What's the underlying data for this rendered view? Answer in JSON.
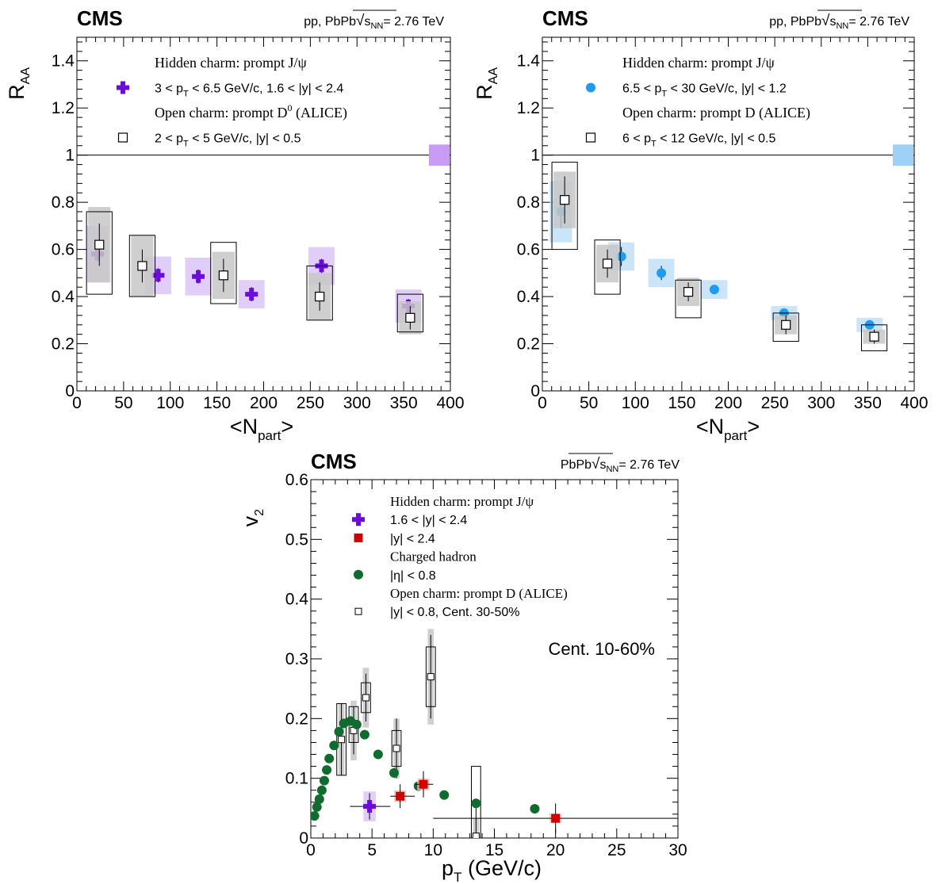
{
  "colors": {
    "jpsi": "#6a0dd9",
    "jpsi_band": "#dcc6f7",
    "jpsi_norm": "#c89cf5",
    "jpsi_high": "#1f9bef",
    "jpsi_high_band": "#c2e0f7",
    "jpsi_high_norm": "#9fd0f5",
    "red": "#d40000",
    "red_band": "#f5c2c2",
    "green": "#0f6b2e",
    "d_sys": "#c7c7c7"
  },
  "chart_data": [
    {
      "type": "scatter",
      "id": "raa_left",
      "brand": "CMS",
      "energy_prefix": "pp, PbPb",
      "energy_value": "= 2.76 TeV",
      "sqrt_text": "s",
      "sqrt_sub": "NN",
      "ylabel": "R",
      "ylabel_sub": "AA",
      "xlabel": "<N",
      "xlabel_sub": "part",
      "xlabel_end": ">",
      "xlim": [
        0,
        400
      ],
      "ylim": [
        0,
        1.5
      ],
      "xticks": [
        "0",
        "50",
        "100",
        "150",
        "200",
        "250",
        "300",
        "350",
        "400"
      ],
      "yticks": [
        "0",
        "0.2",
        "0.4",
        "0.6",
        "0.8",
        "1",
        "1.2",
        "1.4"
      ],
      "reference_line": 1,
      "norm_box": {
        "x": [
          377,
          400
        ],
        "y": [
          0.955,
          1.045
        ],
        "color_key": "jpsi_norm"
      },
      "legend": [
        {
          "kind": "header",
          "text": "Hidden charm: prompt J/ψ"
        },
        {
          "kind": "entry",
          "marker": "cross",
          "color_key": "jpsi",
          "parts": [
            "3 < p",
            "T",
            " < 6.5 GeV/c, 1.6 < |y| < 2.4"
          ]
        },
        {
          "kind": "header",
          "text": "Open charm: prompt D",
          "sup": "0",
          "tail": " (ALICE)"
        },
        {
          "kind": "entry",
          "marker": "open_square",
          "color_key": "black",
          "parts": [
            "2 < p",
            "T",
            " < 5 GeV/c, |y| < 0.5"
          ]
        }
      ],
      "series": [
        {
          "marker": "cross",
          "color_key": "jpsi",
          "band_key": "jpsi_band",
          "points": [
            {
              "x": 22,
              "y": 0.58,
              "err": 0.03,
              "sys": 0.12,
              "bw": 12
            },
            {
              "x": 87,
              "y": 0.49,
              "err": 0.03,
              "sys": 0.08,
              "bw": 14
            },
            {
              "x": 130,
              "y": 0.485,
              "err": 0.03,
              "sys": 0.08,
              "bw": 14
            },
            {
              "x": 187,
              "y": 0.41,
              "err": 0.03,
              "sys": 0.06,
              "bw": 14
            },
            {
              "x": 262,
              "y": 0.53,
              "err": 0.03,
              "sys": 0.08,
              "bw": 14
            },
            {
              "x": 355,
              "y": 0.36,
              "err": 0.03,
              "sys": 0.07,
              "bw": 14
            }
          ]
        },
        {
          "marker": "open_square",
          "color_key": "black",
          "band_key": "d_sys",
          "points": [
            {
              "x": 24,
              "y": 0.62,
              "err": 0.09,
              "sys": 0.16,
              "bw": 12,
              "outer": [
                0.41,
                0.76
              ]
            },
            {
              "x": 70,
              "y": 0.53,
              "err": 0.07,
              "sys": 0.13,
              "bw": 12,
              "outer": [
                0.4,
                0.66
              ]
            },
            {
              "x": 157,
              "y": 0.49,
              "err": 0.07,
              "sys": 0.1,
              "bw": 12,
              "outer": [
                0.37,
                0.63
              ]
            },
            {
              "x": 260,
              "y": 0.4,
              "err": 0.06,
              "sys": 0.1,
              "bw": 12,
              "outer": [
                0.3,
                0.53
              ]
            },
            {
              "x": 357,
              "y": 0.31,
              "err": 0.05,
              "sys": 0.07,
              "bw": 12,
              "outer": [
                0.25,
                0.41
              ]
            }
          ]
        }
      ]
    },
    {
      "type": "scatter",
      "id": "raa_right",
      "brand": "CMS",
      "energy_prefix": "pp, PbPb",
      "energy_value": "= 2.76 TeV",
      "sqrt_text": "s",
      "sqrt_sub": "NN",
      "ylabel": "R",
      "ylabel_sub": "AA",
      "xlabel": "<N",
      "xlabel_sub": "part",
      "xlabel_end": ">",
      "xlim": [
        0,
        400
      ],
      "ylim": [
        0,
        1.5
      ],
      "xticks": [
        "0",
        "50",
        "100",
        "150",
        "200",
        "250",
        "300",
        "350",
        "400"
      ],
      "yticks": [
        "0",
        "0.2",
        "0.4",
        "0.6",
        "0.8",
        "1",
        "1.2",
        "1.4"
      ],
      "reference_line": 1,
      "norm_box": {
        "x": [
          377,
          400
        ],
        "y": [
          0.955,
          1.045
        ],
        "color_key": "jpsi_high_norm"
      },
      "legend": [
        {
          "kind": "header",
          "text": "Hidden charm: prompt J/ψ"
        },
        {
          "kind": "entry",
          "marker": "circle",
          "color_key": "jpsi_high",
          "parts": [
            "6.5 < p",
            "T",
            " < 30 GeV/c, |y| < 1.2"
          ]
        },
        {
          "kind": "header",
          "text": "Open charm: prompt D (ALICE)"
        },
        {
          "kind": "entry",
          "marker": "open_square",
          "color_key": "black",
          "parts": [
            "6 < p",
            "T",
            " < 12 GeV/c, |y| < 0.5"
          ]
        }
      ],
      "series": [
        {
          "marker": "circle",
          "color_key": "jpsi_high",
          "band_key": "jpsi_high_band",
          "points": [
            {
              "x": 20,
              "y": 0.76,
              "err": 0.07,
              "sys": 0.13,
              "bw": 12
            },
            {
              "x": 85,
              "y": 0.57,
              "err": 0.04,
              "sys": 0.06,
              "bw": 14
            },
            {
              "x": 128,
              "y": 0.5,
              "err": 0.03,
              "sys": 0.06,
              "bw": 14
            },
            {
              "x": 185,
              "y": 0.43,
              "err": 0.02,
              "sys": 0.04,
              "bw": 14
            },
            {
              "x": 260,
              "y": 0.33,
              "err": 0.02,
              "sys": 0.03,
              "bw": 14
            },
            {
              "x": 352,
              "y": 0.28,
              "err": 0.02,
              "sys": 0.03,
              "bw": 14
            }
          ]
        },
        {
          "marker": "open_square",
          "color_key": "black",
          "band_key": "d_sys",
          "points": [
            {
              "x": 24,
              "y": 0.81,
              "err": 0.1,
              "sys": 0.12,
              "bw": 12,
              "outer": [
                0.6,
                0.97
              ]
            },
            {
              "x": 70,
              "y": 0.54,
              "err": 0.06,
              "sys": 0.08,
              "bw": 12,
              "outer": [
                0.41,
                0.64
              ]
            },
            {
              "x": 157,
              "y": 0.42,
              "err": 0.04,
              "sys": 0.06,
              "bw": 12,
              "outer": [
                0.31,
                0.47
              ]
            },
            {
              "x": 262,
              "y": 0.28,
              "err": 0.04,
              "sys": 0.04,
              "bw": 12,
              "outer": [
                0.21,
                0.33
              ]
            },
            {
              "x": 357,
              "y": 0.23,
              "err": 0.03,
              "sys": 0.03,
              "bw": 12,
              "outer": [
                0.17,
                0.28
              ]
            }
          ]
        }
      ]
    },
    {
      "type": "scatter",
      "id": "v2",
      "brand": "CMS",
      "energy_prefix": "PbPb",
      "energy_value": "= 2.76 TeV",
      "sqrt_text": "s",
      "sqrt_sub": "NN",
      "ylabel": "v",
      "ylabel_sub": "2",
      "xlabel": "p",
      "xlabel_sub": "T",
      "xlabel_end": " (GeV/c)",
      "xlim": [
        0,
        30
      ],
      "ylim": [
        0,
        0.6
      ],
      "xticks": [
        "0",
        "5",
        "10",
        "15",
        "20",
        "25",
        "30"
      ],
      "yticks": [
        "0",
        "0.1",
        "0.2",
        "0.3",
        "0.4",
        "0.5",
        "0.6"
      ],
      "annotation": "Cent. 10-60%",
      "legend": [
        {
          "kind": "header",
          "text": "Hidden charm: prompt J/ψ"
        },
        {
          "kind": "entry",
          "marker": "cross",
          "color_key": "jpsi",
          "parts": [
            "1.6 < |y| < 2.4"
          ]
        },
        {
          "kind": "entry",
          "marker": "square",
          "color_key": "red",
          "parts": [
            "|y| < 2.4"
          ]
        },
        {
          "kind": "header",
          "text": "Charged hadron"
        },
        {
          "kind": "entry",
          "marker": "circle",
          "color_key": "green",
          "parts": [
            "|η| < 0.8"
          ]
        },
        {
          "kind": "header",
          "text": "Open charm: prompt D (ALICE)"
        },
        {
          "kind": "entry",
          "marker": "open_square_small",
          "color_key": "black",
          "parts": [
            "|y| < 0.8, Cent. 30-50%"
          ]
        }
      ],
      "series": [
        {
          "marker": "open_square_small",
          "color_key": "black",
          "band_key": "d_sys",
          "points": [
            {
              "x": 2.5,
              "y": 0.165,
              "err": 0.06,
              "sys": 0.06,
              "bw": 0.25,
              "outer": [
                0.105,
                0.225
              ]
            },
            {
              "x": 3.5,
              "y": 0.18,
              "err": 0.04,
              "sys": 0.05,
              "bw": 0.25,
              "outer": [
                0.16,
                0.22
              ]
            },
            {
              "x": 4.5,
              "y": 0.235,
              "err": 0.04,
              "sys": 0.05,
              "bw": 0.25,
              "outer": [
                0.21,
                0.26
              ]
            },
            {
              "x": 7.0,
              "y": 0.15,
              "err": 0.05,
              "sys": 0.05,
              "bw": 0.25,
              "outer": [
                0.12,
                0.18
              ]
            },
            {
              "x": 9.8,
              "y": 0.27,
              "err": 0.07,
              "sys": 0.08,
              "bw": 0.25,
              "outer": [
                0.22,
                0.32
              ]
            },
            {
              "x": 13.5,
              "y": 0.003,
              "err": 0.06,
              "sys": 0.03,
              "bw": 0.25,
              "outer": [
                -0.03,
                0.12
              ]
            }
          ]
        },
        {
          "marker": "circle",
          "color_key": "green",
          "points": [
            {
              "x": 0.3,
              "y": 0.037
            },
            {
              "x": 0.5,
              "y": 0.052
            },
            {
              "x": 0.7,
              "y": 0.065
            },
            {
              "x": 0.9,
              "y": 0.08
            },
            {
              "x": 1.1,
              "y": 0.096
            },
            {
              "x": 1.3,
              "y": 0.114
            },
            {
              "x": 1.5,
              "y": 0.133
            },
            {
              "x": 1.9,
              "y": 0.155
            },
            {
              "x": 2.3,
              "y": 0.178
            },
            {
              "x": 2.7,
              "y": 0.192
            },
            {
              "x": 3.25,
              "y": 0.196
            },
            {
              "x": 3.75,
              "y": 0.19
            },
            {
              "x": 4.4,
              "y": 0.173
            },
            {
              "x": 5.5,
              "y": 0.14
            },
            {
              "x": 6.8,
              "y": 0.109
            },
            {
              "x": 8.8,
              "y": 0.087
            },
            {
              "x": 10.9,
              "y": 0.072
            },
            {
              "x": 13.5,
              "y": 0.058
            },
            {
              "x": 18.3,
              "y": 0.049
            }
          ]
        },
        {
          "marker": "cross",
          "color_key": "jpsi",
          "band_key": "jpsi_band",
          "points": [
            {
              "x": 4.8,
              "y": 0.053,
              "err": 0.022,
              "sys": 0.025,
              "bw": 0.5,
              "xerr": [
                3.2,
                6.5
              ]
            }
          ]
        },
        {
          "marker": "square",
          "color_key": "red",
          "band_key": "red_band",
          "points": [
            {
              "x": 7.3,
              "y": 0.07,
              "err": 0.02,
              "sys": 0.01,
              "bw": 0.5,
              "xerr": [
                6.5,
                8.5
              ]
            },
            {
              "x": 9.2,
              "y": 0.09,
              "err": 0.022,
              "sys": 0.01,
              "bw": 0.5,
              "xerr": [
                8.5,
                10.0
              ]
            },
            {
              "x": 20.0,
              "y": 0.033,
              "err": 0.025,
              "sys": 0.008,
              "bw": 0.5,
              "xerr": [
                10.0,
                30.0
              ]
            }
          ]
        }
      ]
    }
  ]
}
